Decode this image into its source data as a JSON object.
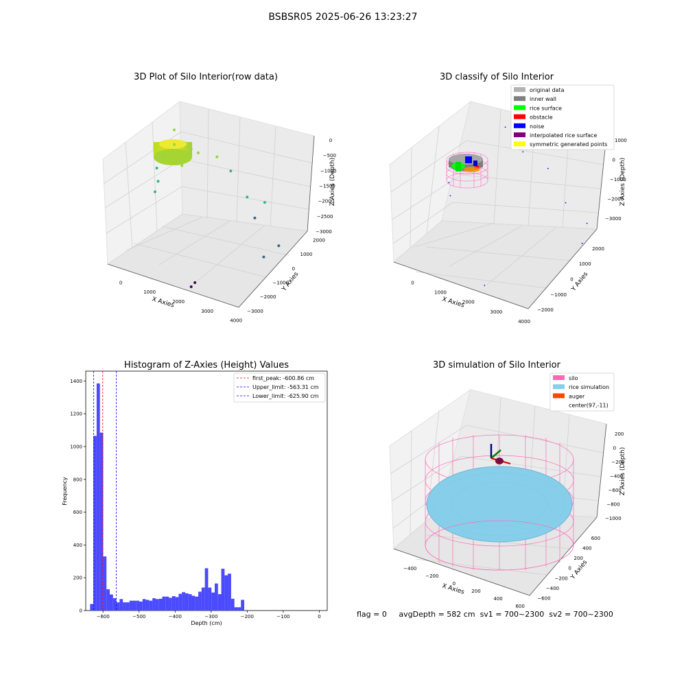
{
  "suptitle": "BSBSR05 2025-06-26 13:23:27",
  "status": {
    "flag": "flag = 0",
    "avg_depth": "avgDepth = 582 cm",
    "sv1": "sv1 = 700~2300",
    "sv2": "sv2 = 700~2300"
  },
  "chart_data": [
    {
      "type": "scatter",
      "title": "3D Plot of Silo Interior(row data)",
      "xlabel": "X Axies",
      "ylabel": "Y Axies",
      "zlabel": "Z Axies (Depth)",
      "x_ticks": [
        "0",
        "1000",
        "2000",
        "3000",
        "4000"
      ],
      "y_ticks": [
        "2000",
        "1000",
        "0",
        "−1000",
        "−2000",
        "−3000"
      ],
      "z_ticks": [
        "0",
        "−500",
        "−1000",
        "−1500",
        "−2000",
        "−2500",
        "−3000"
      ],
      "colormap": "viridis",
      "cluster": {
        "label": "dense ring of points near depth -600",
        "color": "#c8e21e"
      },
      "sparse_points": [
        {
          "x": 200,
          "y": 1500,
          "z": -700
        },
        {
          "x": 300,
          "y": 1200,
          "z": -900
        },
        {
          "x": 100,
          "y": 900,
          "z": -1100
        },
        {
          "x": 0,
          "y": 700,
          "z": -1300
        },
        {
          "x": 100,
          "y": 500,
          "z": -1500
        },
        {
          "x": 50,
          "y": 400,
          "z": -1700
        },
        {
          "x": 600,
          "y": 900,
          "z": -1200
        },
        {
          "x": 900,
          "y": 1300,
          "z": -1000
        },
        {
          "x": 1300,
          "y": 1600,
          "z": -1100
        },
        {
          "x": 1600,
          "y": 1800,
          "z": -1400
        },
        {
          "x": 2100,
          "y": 1600,
          "z": -1800
        },
        {
          "x": 2500,
          "y": 1800,
          "z": -1900
        },
        {
          "x": 2400,
          "y": 1300,
          "z": -2100
        },
        {
          "x": 3100,
          "y": 1100,
          "z": -2500
        },
        {
          "x": 2800,
          "y": 800,
          "z": -2700
        },
        {
          "x": 1500,
          "y": -800,
          "z": -3000
        },
        {
          "x": 1500,
          "y": -1100,
          "z": -3000
        }
      ]
    },
    {
      "type": "scatter",
      "title": "3D classify of Silo Interior",
      "xlabel": "X Axies",
      "ylabel": "Y Axies",
      "zlabel": "Z Axies (Depth)",
      "x_ticks": [
        "0",
        "1000",
        "2000",
        "3000",
        "4000"
      ],
      "y_ticks": [
        "2000",
        "1000",
        "0",
        "−1000",
        "−2000"
      ],
      "z_ticks": [
        "1000",
        "0",
        "−1000",
        "−2000",
        "−3000"
      ],
      "legend": [
        {
          "label": "original data",
          "color": "#b3b3b3"
        },
        {
          "label": "inner wall",
          "color": "#808080"
        },
        {
          "label": "rice surface",
          "color": "#00ff00"
        },
        {
          "label": "obstacle",
          "color": "#ff0000"
        },
        {
          "label": "noise",
          "color": "#0000ff"
        },
        {
          "label": "interpolated rice surface",
          "color": "#800080"
        },
        {
          "label": "symmetric generated points",
          "color": "#ffff00"
        }
      ],
      "legend_position": "top-right",
      "noise_points": [
        {
          "x": 1200,
          "y": 1700,
          "z": -500
        },
        {
          "x": 1500,
          "y": 1800,
          "z": -600
        },
        {
          "x": 1700,
          "y": 1600,
          "z": -900
        },
        {
          "x": 2300,
          "y": 1800,
          "z": -1200
        },
        {
          "x": 2800,
          "y": 1700,
          "z": -1800
        },
        {
          "x": 3300,
          "y": 1900,
          "z": -2200
        },
        {
          "x": 3400,
          "y": 1200,
          "z": -2400
        },
        {
          "x": 100,
          "y": 500,
          "z": -1500
        },
        {
          "x": 200,
          "y": 300,
          "z": -1700
        },
        {
          "x": 1500,
          "y": -900,
          "z": -3000
        }
      ]
    },
    {
      "type": "bar",
      "title": "Histogram of Z-Axies (Height) Values",
      "xlabel": "Depth (cm)",
      "ylabel": "Frequency",
      "x_ticks": [
        "−600",
        "−500",
        "−400",
        "−300",
        "−200",
        "−100",
        "0"
      ],
      "x_tick_values": [
        -600,
        -500,
        -400,
        -300,
        -200,
        -100,
        0
      ],
      "y_ticks": [
        "0",
        "200",
        "400",
        "600",
        "800",
        "1000",
        "1200",
        "1400"
      ],
      "y_tick_values": [
        0,
        200,
        400,
        600,
        800,
        1000,
        1200,
        1400
      ],
      "xlim": [
        -648,
        22
      ],
      "ylim": [
        0,
        1460
      ],
      "bar_color": "#4a4aff",
      "bin_start": -636.0,
      "bin_width": 9.1,
      "values": [
        40,
        1065,
        1385,
        1085,
        330,
        130,
        98,
        75,
        50,
        70,
        50,
        50,
        60,
        60,
        60,
        55,
        70,
        65,
        60,
        75,
        70,
        72,
        85,
        85,
        78,
        88,
        82,
        102,
        112,
        105,
        100,
        90,
        85,
        115,
        140,
        258,
        140,
        110,
        165,
        100,
        255,
        215,
        225,
        72,
        20,
        20,
        65
      ],
      "vlines": [
        {
          "label": "first_peak: -600.86 cm",
          "x": -600.86,
          "color": "#ff0000"
        },
        {
          "label": "Upper_limit: -563.31 cm",
          "x": -563.31,
          "color": "#0000ff"
        },
        {
          "label": "Lower_limit: -625.90 cm",
          "x": -625.9,
          "color": "#0000ff"
        }
      ],
      "legend_position": "top-right"
    },
    {
      "type": "scatter",
      "title": "3D simulation of Silo Interior",
      "xlabel": "X Axies",
      "ylabel": "Y Axies",
      "zlabel": "Z Axies (Depth)",
      "x_ticks": [
        "−400",
        "−200",
        "0",
        "200",
        "400",
        "600"
      ],
      "y_ticks": [
        "600",
        "400",
        "200",
        "0",
        "−200",
        "−400",
        "−600"
      ],
      "z_ticks": [
        "200",
        "0",
        "−200",
        "−400",
        "−600",
        "−800",
        "−1000"
      ],
      "legend": [
        {
          "label": "silo",
          "color": "#ff69b4"
        },
        {
          "label": "rice simulation",
          "color": "#87ceeb"
        },
        {
          "label": "auger",
          "color": "#ff4500"
        },
        {
          "label": "center(97,-11)",
          "color": ""
        }
      ],
      "legend_position": "top-right"
    }
  ]
}
